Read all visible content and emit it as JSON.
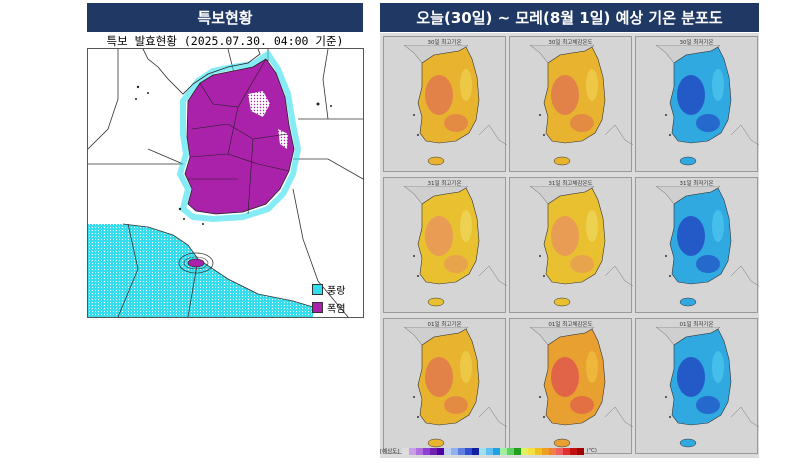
{
  "left": {
    "header": "특보현황",
    "subtitle": "특보 발효현황 (2025.07.30. 04:00 기준)",
    "legend": [
      {
        "label": "풍랑",
        "color": "#33ddee"
      },
      {
        "label": "폭염",
        "color": "#aa22aa"
      }
    ]
  },
  "right": {
    "header": "오늘(30일) ~ 모레(8월 1일) 예상 기온 분포도",
    "tiles": [
      {
        "label": "30일 최고기온",
        "scheme": "hot"
      },
      {
        "label": "30일 최고체감온도",
        "scheme": "hot"
      },
      {
        "label": "30일 최저기온",
        "scheme": "cool"
      },
      {
        "label": "31일 최고기온",
        "scheme": "warm"
      },
      {
        "label": "31일 최고체감온도",
        "scheme": "warm"
      },
      {
        "label": "31일 최저기온",
        "scheme": "cool"
      },
      {
        "label": "01일 최고기온",
        "scheme": "hot"
      },
      {
        "label": "01일 최고체감온도",
        "scheme": "hotter"
      },
      {
        "label": "01일 최저기온",
        "scheme": "cool"
      }
    ],
    "scale": {
      "label": "[예상도]",
      "unit": "(℃)",
      "colors": [
        "#dddddd",
        "#c8a0e8",
        "#b070e0",
        "#9040d0",
        "#7020b0",
        "#5000a0",
        "#c0d0f0",
        "#90b0f0",
        "#6080e0",
        "#3050d0",
        "#1020a0",
        "#a0e0f0",
        "#60c0f0",
        "#20a0e0",
        "#a0f0a0",
        "#60d060",
        "#20a020",
        "#e0f060",
        "#f0e040",
        "#f0c020",
        "#f0a020",
        "#f08040",
        "#f06060",
        "#e03030",
        "#c01010",
        "#a00000"
      ]
    }
  }
}
